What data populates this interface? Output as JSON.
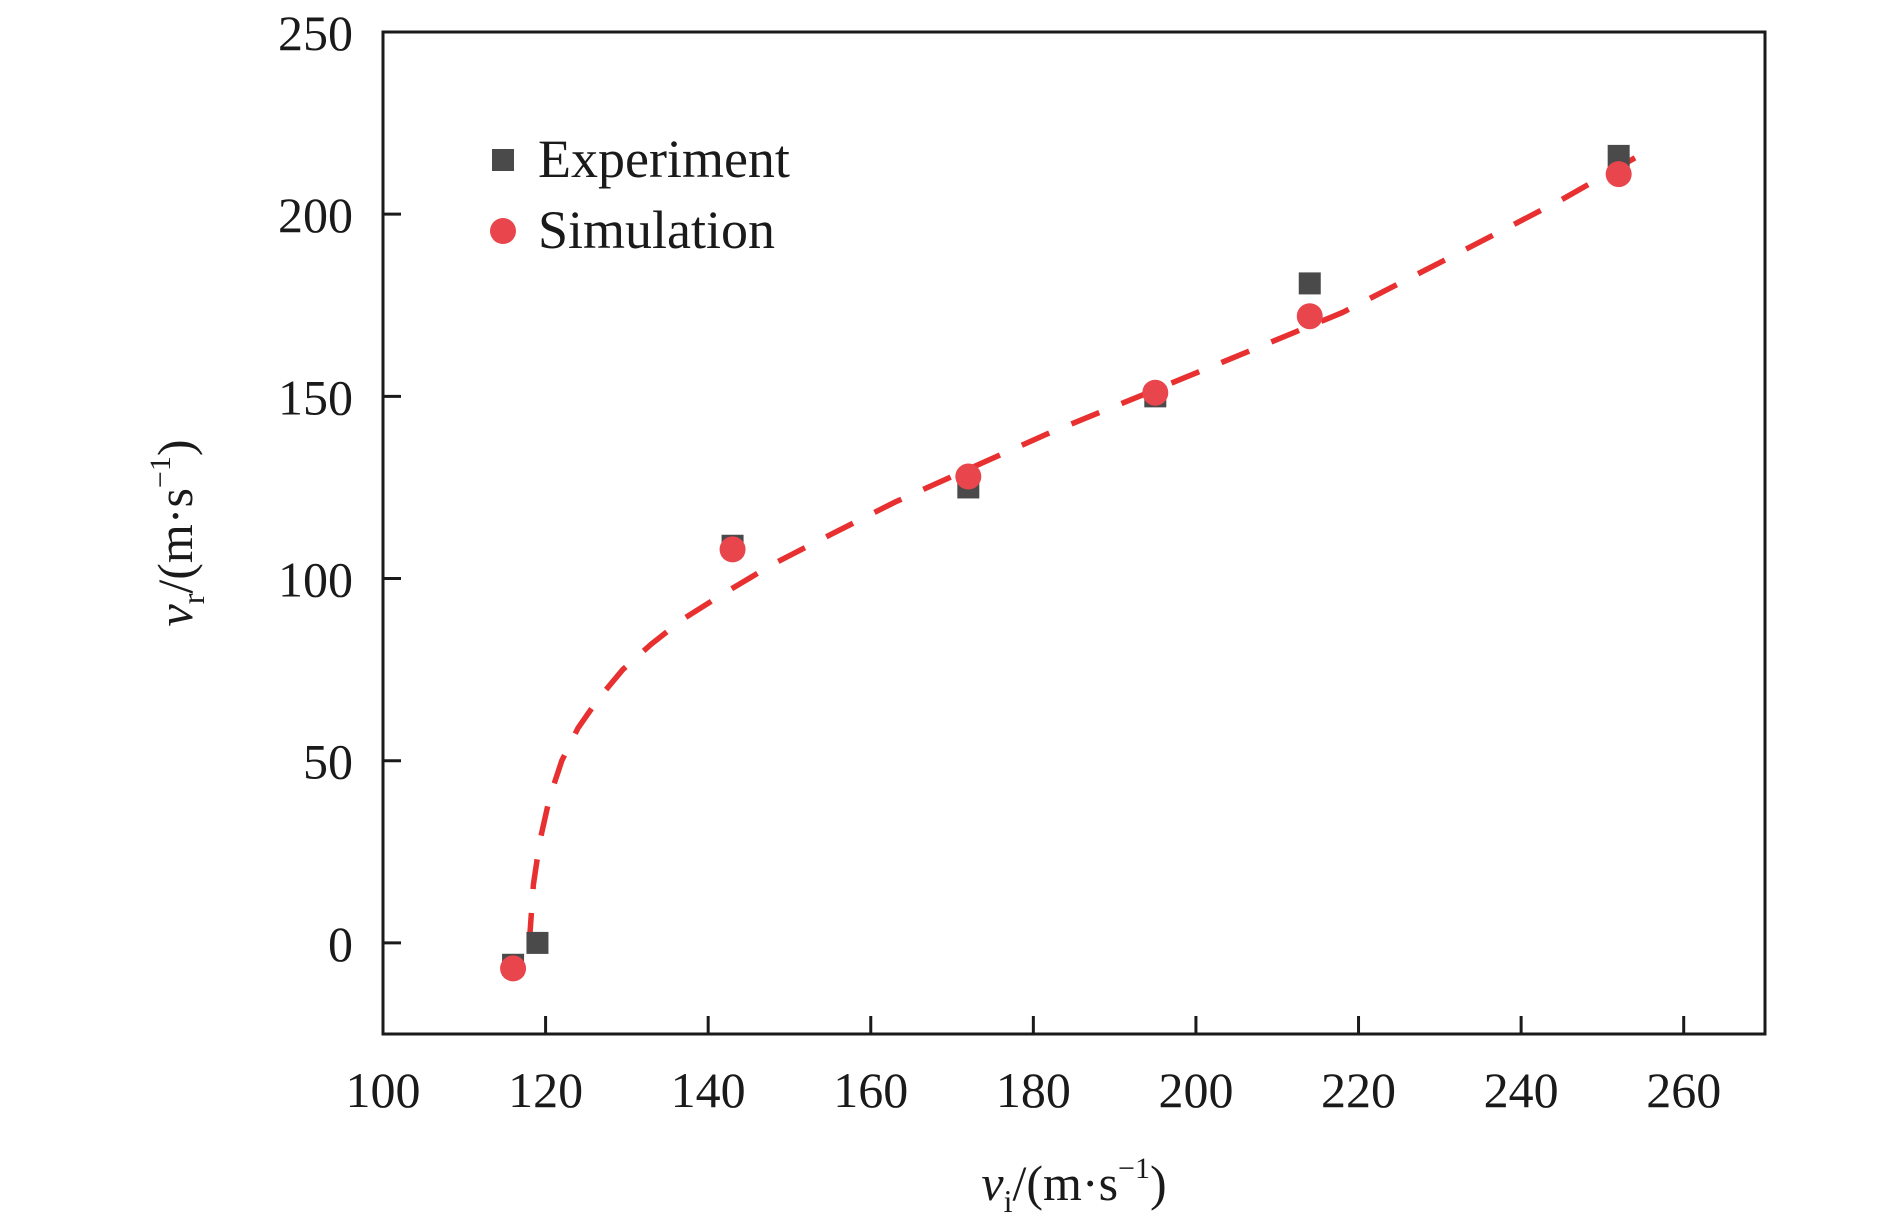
{
  "chart_data": {
    "type": "scatter",
    "title": "",
    "xlabel": {
      "var": "v",
      "sub": "i",
      "unit_open": "/(m·s",
      "unit_exp": "−1",
      "unit_close": ")"
    },
    "ylabel": {
      "var": "v",
      "sub": "r",
      "unit_open": "/(m·s",
      "unit_exp": "−1",
      "unit_close": ")"
    },
    "xlim": [
      100,
      270
    ],
    "ylim": [
      -25,
      250
    ],
    "xticks": [
      100,
      120,
      140,
      160,
      180,
      200,
      220,
      240,
      260
    ],
    "yticks": [
      0,
      50,
      100,
      150,
      200,
      250
    ],
    "grid": false,
    "legend_position": "top-left",
    "colors": {
      "experiment": "#4a4a4a",
      "simulation": "#e8454c",
      "fit": "#e83030",
      "axis": "#1a1a1a"
    },
    "series": [
      {
        "name": "Experiment",
        "marker": "square",
        "x": [
          116,
          119,
          143,
          172,
          195,
          214,
          252
        ],
        "y": [
          -6,
          0,
          109,
          125,
          150,
          181,
          216
        ]
      },
      {
        "name": "Simulation",
        "marker": "circle",
        "x": [
          116,
          143,
          172,
          195,
          214,
          252
        ],
        "y": [
          -7,
          108,
          128,
          151,
          172,
          211
        ]
      }
    ],
    "fit_curve": {
      "style": "dashed",
      "x": [
        118,
        118.5,
        119.3,
        120.5,
        122,
        124,
        126.5,
        129.5,
        133,
        137,
        142,
        148,
        155,
        163,
        172,
        182,
        193,
        205,
        218,
        232,
        245,
        256
      ],
      "y": [
        0,
        16,
        28,
        40,
        50,
        59,
        67,
        75,
        82,
        89,
        96,
        104,
        112,
        121,
        130,
        140,
        150,
        161,
        173,
        189,
        204,
        218
      ]
    }
  }
}
